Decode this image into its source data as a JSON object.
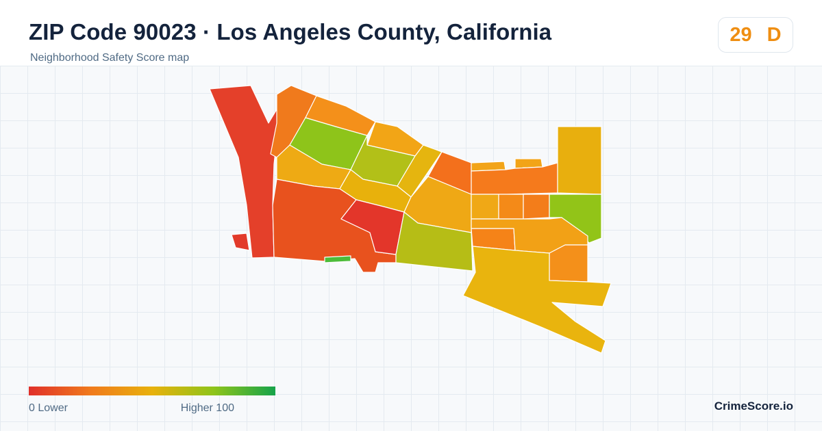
{
  "header": {
    "title": "ZIP Code 90023 · Los Angeles County, California",
    "subtitle": "Neighborhood Safety Score map"
  },
  "score": {
    "value": "29",
    "grade": "D",
    "color": "#ef8e12"
  },
  "legend": {
    "min_label": "0  Lower",
    "max_label": "Higher  100",
    "colors": [
      "#e0302a",
      "#f07a1c",
      "#e8b10c",
      "#8ec41a",
      "#16a34a"
    ]
  },
  "brand": "CrimeScore.io",
  "map": {
    "regions": [
      {
        "id": "west-strip",
        "color": "#e4402a"
      },
      {
        "id": "northwest-orange",
        "color": "#f07a1c"
      },
      {
        "id": "north-green",
        "color": "#8ec41a"
      },
      {
        "id": "north-orange",
        "color": "#f4901a"
      },
      {
        "id": "north-amber",
        "color": "#f2a516"
      },
      {
        "id": "central-yellowgreen",
        "color": "#b2c018"
      },
      {
        "id": "central-amber",
        "color": "#eeaa14"
      },
      {
        "id": "central-gold",
        "color": "#e8b10c"
      },
      {
        "id": "north-diagonal-gold",
        "color": "#e5b50f"
      },
      {
        "id": "northeast-orange",
        "color": "#f3701c"
      },
      {
        "id": "central-east-amber",
        "color": "#efa815"
      },
      {
        "id": "southwest-red",
        "color": "#e8521e"
      },
      {
        "id": "center-red",
        "color": "#e3362a"
      },
      {
        "id": "south-yellowgreen",
        "color": "#b6bd16"
      },
      {
        "id": "east-orange-row",
        "color": "#f57a1c"
      },
      {
        "id": "east-top-amber",
        "color": "#f2a418"
      },
      {
        "id": "far-east-gold",
        "color": "#e8af0e"
      },
      {
        "id": "east-green",
        "color": "#92c418"
      },
      {
        "id": "east-mid-amber",
        "color": "#f0a816"
      },
      {
        "id": "east-mid-orange-1",
        "color": "#f48a18"
      },
      {
        "id": "east-mid-orange-2",
        "color": "#f37d1a"
      },
      {
        "id": "east-lower-amber",
        "color": "#f2a116"
      },
      {
        "id": "east-lower-orange",
        "color": "#f58318"
      },
      {
        "id": "southeast-gold",
        "color": "#e9b40e"
      },
      {
        "id": "southeast-orange-small",
        "color": "#f4901a"
      },
      {
        "id": "south-green-sliver",
        "color": "#4cbc3a"
      },
      {
        "id": "west-small-red",
        "color": "#e23a2a"
      }
    ]
  }
}
